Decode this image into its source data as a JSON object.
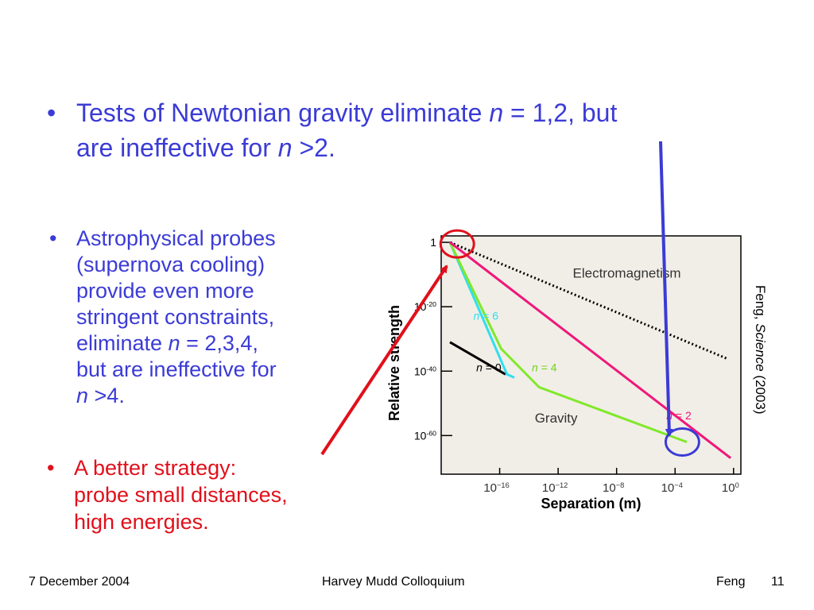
{
  "slide": {
    "bullet1": {
      "text1": "Tests of Newtonian gravity eliminate ",
      "n": "n",
      "text2": " = 1,2, but",
      "text3": "are ineffective for ",
      "text4": " >2."
    },
    "bullet2": {
      "lines": [
        "Astrophysical probes",
        "(supernova cooling)",
        "provide even more",
        "stringent constraints,"
      ],
      "text5a": "eliminate ",
      "n": "n",
      "text5b": " = 2,3,4,",
      "text6": "but are ineffective for",
      "text7": " >4."
    },
    "bullet3": {
      "lines": [
        "A better strategy:",
        "probe small distances,",
        "high energies."
      ]
    },
    "bullet_char": "•"
  },
  "citation": {
    "author": "Feng, ",
    "journal": "Science",
    "year": "  (2003)"
  },
  "footer": {
    "date": "7 December 2004",
    "center": "Harvey Mudd Colloquium",
    "author": "Feng",
    "page": "11"
  },
  "chart_data": {
    "type": "line",
    "xlabel": "Separation (m)",
    "ylabel": "Relative strength",
    "x_scale": "log",
    "y_scale": "log",
    "xlim_exp": [
      -20,
      0.5
    ],
    "ylim_exp": [
      -72,
      2
    ],
    "x_ticks": [
      {
        "exp": -16,
        "label": "10",
        "sup": "−16"
      },
      {
        "exp": -12,
        "label": "10",
        "sup": "−12"
      },
      {
        "exp": -8,
        "label": "10",
        "sup": "−8"
      },
      {
        "exp": -4,
        "label": "10",
        "sup": "−4"
      },
      {
        "exp": 0,
        "label": "10",
        "sup": "0"
      }
    ],
    "y_ticks": [
      {
        "exp": 0,
        "label": "1",
        "sup": ""
      },
      {
        "exp": -20,
        "label": "10",
        "sup": "-20"
      },
      {
        "exp": -40,
        "label": "10",
        "sup": "-40"
      },
      {
        "exp": -60,
        "label": "10",
        "sup": "-60"
      }
    ],
    "annotations": {
      "electromagnetism": "Electromagnetism",
      "gravity": "Gravity"
    },
    "series": [
      {
        "name": "Electromagnetism",
        "style": "dotted",
        "color": "#000000",
        "points": [
          [
            -19.4,
            0
          ],
          [
            -0.5,
            -36
          ]
        ]
      },
      {
        "name": "n = 0",
        "label_n": "n",
        "label_rest": " = 0",
        "color": "#000000",
        "points": [
          [
            -19.4,
            -31
          ],
          [
            -15.6,
            -41
          ]
        ]
      },
      {
        "name": "n = 6",
        "label_n": "n",
        "label_rest": " = 6",
        "color": "#2ee0ee",
        "points": [
          [
            -19.4,
            0
          ],
          [
            -15.5,
            -41
          ],
          [
            -15,
            -42
          ]
        ]
      },
      {
        "name": "n = 4",
        "label_n": "n",
        "label_rest": " = 4",
        "color": "#80e82a",
        "points": [
          [
            -19.4,
            0
          ],
          [
            -15.9,
            -33
          ],
          [
            -13.3,
            -45
          ],
          [
            -3.2,
            -62
          ]
        ]
      },
      {
        "name": "n = 2",
        "label_n": "n",
        "label_rest": " = 2",
        "color": "#f0177a",
        "points": [
          [
            -19.4,
            0
          ],
          [
            -0.2,
            -67
          ]
        ]
      }
    ],
    "circles": [
      {
        "name": "red-circle",
        "color": "#e0101b",
        "cx_exp": -18.9,
        "cy_exp": -0.5
      },
      {
        "name": "blue-circle",
        "color": "#3b3bd6",
        "cx_exp": -3.5,
        "cy_exp": -62
      }
    ]
  }
}
